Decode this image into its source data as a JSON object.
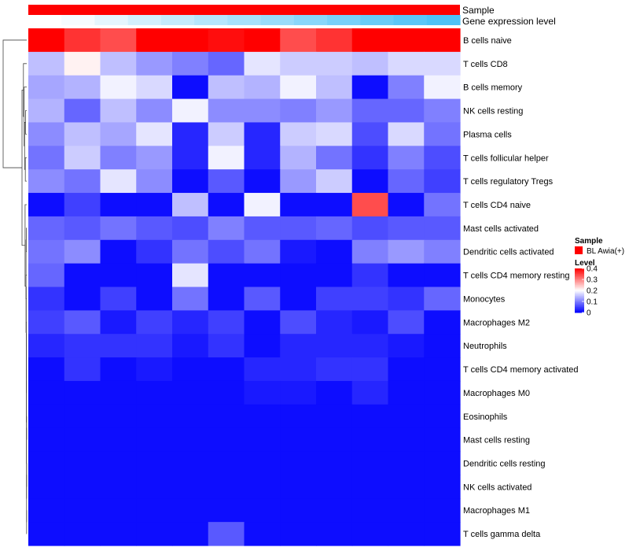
{
  "chart_data": {
    "type": "heatmap",
    "annotations": {
      "sample_label": "Sample",
      "expression_label": "Gene expression level",
      "sample_color": "#ff0000",
      "expression_values": [
        0.0,
        0.05,
        0.15,
        0.25,
        0.33,
        0.42,
        0.5,
        0.58,
        0.67,
        0.76,
        0.85,
        0.93,
        1.0
      ]
    },
    "rows": [
      "B cells naive",
      "T cells CD8",
      "B cells memory",
      "NK cells resting",
      "Plasma cells",
      "T cells follicular helper",
      "T cells regulatory  Tregs",
      "T cells CD4 naive",
      "Mast cells activated",
      "Dendritic cells activated",
      "T cells CD4 memory resting",
      "Monocytes",
      "Macrophages M2",
      "Neutrophils",
      "T cells CD4 memory activated",
      "Macrophages M0",
      "Eosinophils",
      "Mast cells resting",
      "Dendritic cells resting",
      "NK cells activated",
      "Macrophages M1",
      "T cells gamma delta"
    ],
    "values": [
      [
        0.44,
        0.36,
        0.34,
        0.4,
        0.45,
        0.39,
        0.44,
        0.34,
        0.36,
        0.42,
        0.42,
        0.4
      ],
      [
        0.15,
        0.21,
        0.15,
        0.12,
        0.1,
        0.08,
        0.18,
        0.16,
        0.16,
        0.15,
        0.17,
        0.17
      ],
      [
        0.13,
        0.14,
        0.19,
        0.17,
        0.01,
        0.15,
        0.14,
        0.19,
        0.15,
        0.01,
        0.1,
        0.19
      ],
      [
        0.14,
        0.08,
        0.15,
        0.11,
        0.19,
        0.11,
        0.11,
        0.1,
        0.12,
        0.08,
        0.08,
        0.1
      ],
      [
        0.11,
        0.15,
        0.13,
        0.18,
        0.03,
        0.16,
        0.03,
        0.16,
        0.17,
        0.06,
        0.17,
        0.09
      ],
      [
        0.09,
        0.16,
        0.1,
        0.12,
        0.03,
        0.19,
        0.03,
        0.14,
        0.09,
        0.04,
        0.1,
        0.06
      ],
      [
        0.11,
        0.09,
        0.18,
        0.11,
        0.01,
        0.07,
        0.01,
        0.12,
        0.16,
        0.01,
        0.08,
        0.05
      ],
      [
        0.01,
        0.05,
        0.01,
        0.01,
        0.15,
        0.01,
        0.19,
        0.01,
        0.01,
        0.34,
        0.01,
        0.09
      ],
      [
        0.08,
        0.07,
        0.09,
        0.07,
        0.06,
        0.1,
        0.07,
        0.07,
        0.08,
        0.06,
        0.07,
        0.07
      ],
      [
        0.09,
        0.11,
        0.01,
        0.04,
        0.09,
        0.06,
        0.09,
        0.02,
        0.01,
        0.1,
        0.12,
        0.1
      ],
      [
        0.08,
        0.01,
        0.01,
        0.01,
        0.18,
        0.01,
        0.01,
        0.01,
        0.01,
        0.04,
        0.01,
        0.01
      ],
      [
        0.04,
        0.01,
        0.05,
        0.01,
        0.09,
        0.01,
        0.07,
        0.01,
        0.05,
        0.05,
        0.04,
        0.08
      ],
      [
        0.05,
        0.07,
        0.02,
        0.05,
        0.03,
        0.05,
        0.01,
        0.06,
        0.03,
        0.02,
        0.06,
        0.01
      ],
      [
        0.03,
        0.04,
        0.04,
        0.04,
        0.02,
        0.04,
        0.01,
        0.03,
        0.03,
        0.03,
        0.02,
        0.01
      ],
      [
        0.01,
        0.04,
        0.01,
        0.02,
        0.01,
        0.01,
        0.03,
        0.03,
        0.04,
        0.04,
        0.01,
        0.01
      ],
      [
        0.01,
        0.01,
        0.01,
        0.01,
        0.01,
        0.01,
        0.02,
        0.02,
        0.01,
        0.03,
        0.01,
        0.01
      ],
      [
        0.01,
        0.01,
        0.01,
        0.01,
        0.01,
        0.01,
        0.01,
        0.01,
        0.01,
        0.01,
        0.01,
        0.01
      ],
      [
        0.01,
        0.01,
        0.01,
        0.01,
        0.01,
        0.01,
        0.01,
        0.01,
        0.01,
        0.01,
        0.01,
        0.01
      ],
      [
        0.01,
        0.01,
        0.01,
        0.01,
        0.01,
        0.01,
        0.01,
        0.01,
        0.01,
        0.01,
        0.01,
        0.01
      ],
      [
        0.01,
        0.01,
        0.01,
        0.01,
        0.01,
        0.01,
        0.01,
        0.01,
        0.01,
        0.01,
        0.01,
        0.01
      ],
      [
        0.01,
        0.01,
        0.01,
        0.01,
        0.01,
        0.01,
        0.01,
        0.01,
        0.01,
        0.01,
        0.01,
        0.01
      ],
      [
        0.01,
        0.01,
        0.01,
        0.01,
        0.01,
        0.07,
        0.01,
        0.01,
        0.01,
        0.01,
        0.01,
        0.01
      ]
    ],
    "color_scale": {
      "min": 0,
      "max": 0.4,
      "colors": [
        "#0000ff",
        "#ffffff",
        "#ff0000"
      ]
    },
    "legend": {
      "placement": "right",
      "sample_title": "Sample",
      "sample_entry": "BL Awia(+)",
      "level_title": "Level",
      "level_ticks": [
        "0.4",
        "0.3",
        "0.2",
        "0.1",
        "0"
      ],
      "level_tick_values": [
        0.4,
        0.3,
        0.2,
        0.1,
        0
      ]
    },
    "dendrogram": {
      "side": "left",
      "merges": [
        [
          -4,
          -5
        ],
        [
          -6,
          -7
        ],
        [
          1,
          2
        ],
        [
          -3,
          3
        ],
        [
          -2,
          4
        ],
        [
          -9,
          -10
        ],
        [
          -11,
          -12
        ],
        [
          -13,
          -14
        ],
        [
          -15,
          -16
        ],
        [
          -17,
          -18
        ],
        [
          -19,
          -20
        ],
        [
          -21,
          -22
        ],
        [
          11,
          12
        ],
        [
          10,
          13
        ],
        [
          9,
          14
        ],
        [
          8,
          15
        ],
        [
          7,
          16
        ],
        [
          6,
          17
        ],
        [
          -8,
          18
        ],
        [
          5,
          19
        ],
        [
          -1,
          20
        ]
      ],
      "heights": [
        0.05,
        0.06,
        0.09,
        0.11,
        0.14,
        0.02,
        0.03,
        0.02,
        0.02,
        0.005,
        0.005,
        0.005,
        0.007,
        0.009,
        0.012,
        0.015,
        0.02,
        0.03,
        0.07,
        0.2,
        1.0
      ]
    }
  }
}
